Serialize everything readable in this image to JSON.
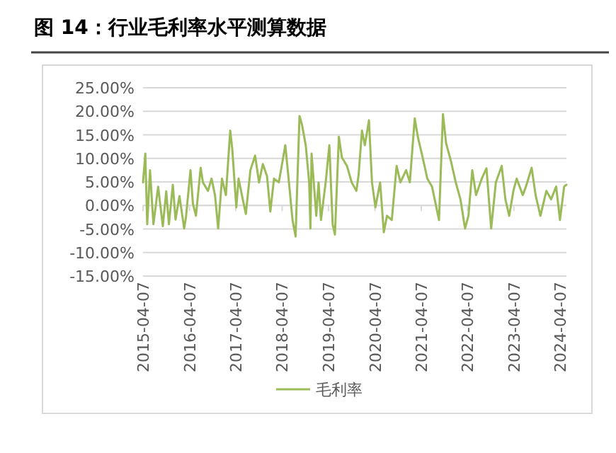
{
  "chart_data": {
    "type": "line",
    "title": "图 14：行业毛利率水平测算数据",
    "x": [
      "2015-04-07",
      "2015-04-25",
      "2015-05-10",
      "2015-06-01",
      "2015-06-28",
      "2015-08-04",
      "2015-09-10",
      "2015-10-07",
      "2015-10-28",
      "2015-11-28",
      "2015-12-19",
      "2016-01-19",
      "2016-02-25",
      "2016-03-10",
      "2016-04-15",
      "2016-05-04",
      "2016-05-28",
      "2016-07-04",
      "2016-07-22",
      "2016-08-31",
      "2016-09-28",
      "2016-10-25",
      "2016-11-19",
      "2016-12-19",
      "2017-01-19",
      "2017-02-22",
      "2017-03-10",
      "2017-04-11",
      "2017-04-29",
      "2017-05-25",
      "2017-06-25",
      "2017-07-31",
      "2017-09-06",
      "2017-10-07",
      "2017-11-06",
      "2017-12-09",
      "2018-01-04",
      "2018-02-02",
      "2018-03-12",
      "2018-04-14",
      "2018-05-02",
      "2018-05-28",
      "2018-06-28",
      "2018-07-22",
      "2018-08-22",
      "2018-09-10",
      "2018-10-10",
      "2018-11-06",
      "2018-11-16",
      "2018-11-25",
      "2019-01-01",
      "2019-01-19",
      "2019-02-07",
      "2019-03-16",
      "2019-04-14",
      "2019-05-10",
      "2019-05-28",
      "2019-06-28",
      "2019-07-22",
      "2019-08-31",
      "2019-10-07",
      "2019-11-13",
      "2019-12-01",
      "2019-12-27",
      "2020-01-19",
      "2020-02-20",
      "2020-03-15",
      "2020-04-11",
      "2020-05-18",
      "2020-06-16",
      "2020-07-11",
      "2020-08-18",
      "2020-09-25",
      "2020-10-25",
      "2020-12-09",
      "2021-01-07",
      "2021-02-15",
      "2021-03-11",
      "2021-04-18",
      "2021-05-25",
      "2021-07-01",
      "2021-08-25",
      "2021-09-25",
      "2021-10-20",
      "2021-11-28",
      "2022-01-04",
      "2022-02-10",
      "2022-03-18",
      "2022-04-14",
      "2022-05-14",
      "2022-06-13",
      "2022-07-28",
      "2022-09-03",
      "2022-10-10",
      "2022-11-16",
      "2023-01-01",
      "2023-01-30",
      "2023-03-01",
      "2023-04-03",
      "2023-04-29",
      "2023-06-16",
      "2023-07-11",
      "2023-08-25",
      "2023-09-25",
      "2023-11-02",
      "2023-12-19",
      "2024-01-25",
      "2024-03-05",
      "2024-04-04",
      "2024-05-07",
      "2024-05-25"
    ],
    "series": [
      {
        "name": "毛利率",
        "color": "#9bbb59",
        "values": [
          4.9,
          11,
          -4,
          7.5,
          -4,
          4,
          -4.4,
          3,
          -4,
          4.4,
          -3,
          2,
          -4.9,
          -2.6,
          7.5,
          0.4,
          -2.2,
          8,
          4.9,
          3.1,
          5.7,
          2.2,
          -4.9,
          5.7,
          2.2,
          15.9,
          12,
          -0.4,
          5.7,
          2.2,
          -1.8,
          7.5,
          10.6,
          4.9,
          8.8,
          6.2,
          -1.3,
          5.7,
          4.9,
          10,
          12.8,
          5.7,
          -3.1,
          -6.6,
          19,
          17.2,
          12.8,
          4.9,
          -4.9,
          11,
          -2.2,
          4.9,
          -3.1,
          4.9,
          12.8,
          -4,
          -6.2,
          14.6,
          10.2,
          8.4,
          4.9,
          3.1,
          6.6,
          15.9,
          12.8,
          18.1,
          4.9,
          -0.4,
          4.9,
          -5.7,
          -2.2,
          -3.1,
          8.4,
          4.9,
          7.5,
          4.9,
          18.5,
          14.6,
          10.2,
          5.7,
          4,
          -3.1,
          19.4,
          13.2,
          9.3,
          4.9,
          1.3,
          -4.9,
          -2.2,
          7.5,
          2.2,
          5.7,
          7.9,
          -4.9,
          4.9,
          8.4,
          1.3,
          -2.2,
          3.1,
          5.7,
          2.2,
          4,
          8,
          2.2,
          -2.2,
          3.1,
          1.3,
          4,
          -3.1,
          4,
          4.4
        ]
      }
    ],
    "xlim": [
      "2015-04-07",
      "2024-05-25"
    ],
    "xticks": [
      "2015-04-07",
      "2016-04-07",
      "2017-04-07",
      "2018-04-07",
      "2019-04-07",
      "2020-04-07",
      "2021-04-07",
      "2022-04-07",
      "2023-04-07",
      "2024-04-07"
    ],
    "ylim": [
      -15,
      25
    ],
    "yticks": [
      {
        "value": 25,
        "label": "25.00%"
      },
      {
        "value": 20,
        "label": "20.00%"
      },
      {
        "value": 15,
        "label": "15.00%"
      },
      {
        "value": 10,
        "label": "10.00%"
      },
      {
        "value": 5,
        "label": "5.00%"
      },
      {
        "value": 0,
        "label": "0.00%"
      },
      {
        "value": -5,
        "label": "-5.00%"
      },
      {
        "value": -10,
        "label": "-10.00%"
      },
      {
        "value": -15,
        "label": "-15.00%"
      }
    ],
    "grid": "y",
    "legend": "bottom",
    "marker": "none",
    "line_style": "solid"
  }
}
